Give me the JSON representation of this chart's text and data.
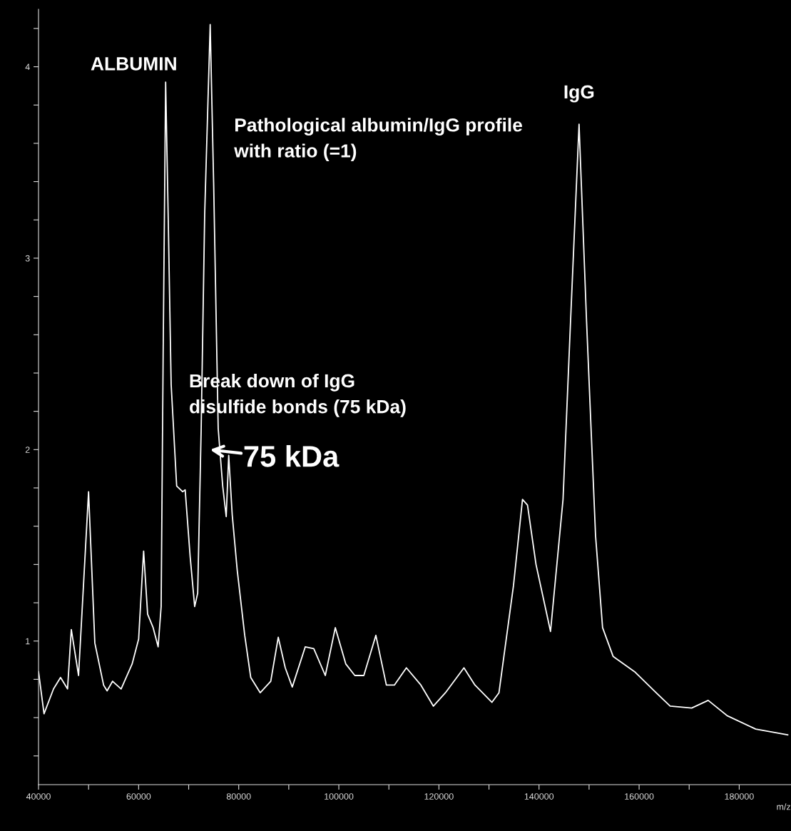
{
  "chart_data": {
    "type": "line",
    "xlabel": "m/z",
    "x": [
      40000,
      41100,
      43000,
      44400,
      45800,
      46550,
      48000,
      50000,
      51250,
      53000,
      53700,
      54800,
      56500,
      58700,
      60000,
      61000,
      61800,
      62900,
      63900,
      64500,
      64900,
      65400,
      65900,
      66500,
      67600,
      68800,
      69300,
      70300,
      71200,
      71800,
      72500,
      73200,
      74300,
      75000,
      75900,
      76800,
      77500,
      78000,
      78700,
      79700,
      81200,
      82400,
      84300,
      86400,
      87900,
      89300,
      90700,
      93300,
      95000,
      97300,
      99300,
      101400,
      103200,
      105000,
      107400,
      109500,
      111100,
      113500,
      116400,
      118900,
      121300,
      125000,
      127200,
      130600,
      132000,
      134900,
      136700,
      137700,
      139400,
      142300,
      144800,
      146300,
      148000,
      149500,
      151300,
      152700,
      154800,
      159100,
      163400,
      166200,
      170500,
      173800,
      177600,
      183300,
      189700
    ],
    "series": [
      {
        "color": "#ffffff",
        "values": [
          0.84,
          0.62,
          0.75,
          0.81,
          0.75,
          1.06,
          0.82,
          1.78,
          0.99,
          0.77,
          0.74,
          0.79,
          0.75,
          0.88,
          1.01,
          1.47,
          1.14,
          1.07,
          0.97,
          1.18,
          2.49,
          3.92,
          3.23,
          2.34,
          1.81,
          1.78,
          1.79,
          1.44,
          1.18,
          1.25,
          2.11,
          3.23,
          4.22,
          3.38,
          2.11,
          1.81,
          1.65,
          1.97,
          1.66,
          1.37,
          1.03,
          0.81,
          0.73,
          0.79,
          1.02,
          0.86,
          0.76,
          0.97,
          0.96,
          0.82,
          1.07,
          0.88,
          0.82,
          0.82,
          1.03,
          0.77,
          0.77,
          0.86,
          0.77,
          0.66,
          0.73,
          0.86,
          0.77,
          0.68,
          0.73,
          1.29,
          1.74,
          1.71,
          1.4,
          1.05,
          1.74,
          2.67,
          3.7,
          2.67,
          1.55,
          1.07,
          0.92,
          0.84,
          0.73,
          0.66,
          0.65,
          0.69,
          0.61,
          0.54,
          0.51
        ]
      }
    ],
    "xlim": [
      40000,
      190300
    ],
    "ylim": [
      0.25,
      4.3
    ],
    "xticks": [
      40000,
      {
        "value": 50000,
        "label": null
      },
      60000,
      {
        "value": 70000,
        "label": null
      },
      80000,
      {
        "value": 90000,
        "label": null
      },
      100000,
      {
        "value": 110000,
        "label": null
      },
      120000,
      {
        "value": 130000,
        "label": null
      },
      140000,
      {
        "value": 150000,
        "label": null
      },
      160000,
      {
        "value": 170000,
        "label": null
      },
      180000
    ],
    "yticks": [
      {
        "value": 0.4,
        "label": null
      },
      {
        "value": 0.6,
        "label": null
      },
      {
        "value": 0.8,
        "label": null
      },
      1,
      {
        "value": 1.2,
        "label": null
      },
      {
        "value": 1.4,
        "label": null
      },
      {
        "value": 1.6,
        "label": null
      },
      {
        "value": 1.8,
        "label": null
      },
      2,
      {
        "value": 2.2,
        "label": null
      },
      {
        "value": 2.4,
        "label": null
      },
      {
        "value": 2.6,
        "label": null
      },
      {
        "value": 2.8,
        "label": null
      },
      3,
      {
        "value": 3.2,
        "label": null
      },
      {
        "value": 3.4,
        "label": null
      },
      {
        "value": 3.6,
        "label": null
      },
      {
        "value": 3.8,
        "label": null
      },
      4,
      {
        "value": 4.2,
        "label": null
      }
    ],
    "grid": false,
    "marker": "none",
    "line_style": "solid",
    "annotations": [
      {
        "text": "ALBUMIN",
        "x": 65400,
        "y": 3.92
      },
      "Pathological albumin/IgG profile\nwith ratio (=1)",
      {
        "text": "IgG",
        "x": 148000,
        "y": 3.7
      },
      "Break down of IgG\ndisulfide bonds (75 kDa)",
      "75 kDa"
    ]
  }
}
